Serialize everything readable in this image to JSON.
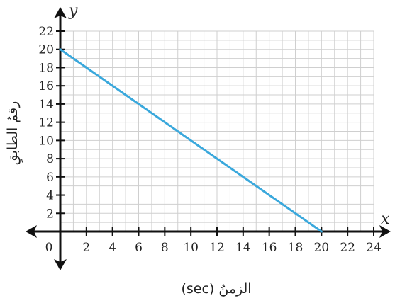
{
  "chart_data": {
    "type": "line",
    "xlim": [
      0,
      24
    ],
    "ylim": [
      0,
      22
    ],
    "x_ticks": [
      "0",
      "2",
      "4",
      "6",
      "8",
      "10",
      "12",
      "14",
      "16",
      "18",
      "20",
      "22",
      "24"
    ],
    "y_ticks": [
      "2",
      "4",
      "6",
      "8",
      "10",
      "12",
      "14",
      "16",
      "18",
      "20",
      "22"
    ],
    "x_axis_letter": "x",
    "y_axis_letter": "y",
    "xlabel": "الزمنُ (sec)",
    "ylabel": "رقمُ الطابقِ",
    "grid": true,
    "series": [
      {
        "x": [
          0,
          20
        ],
        "y": [
          20,
          0
        ],
        "color": "#3aa8dc"
      }
    ]
  }
}
